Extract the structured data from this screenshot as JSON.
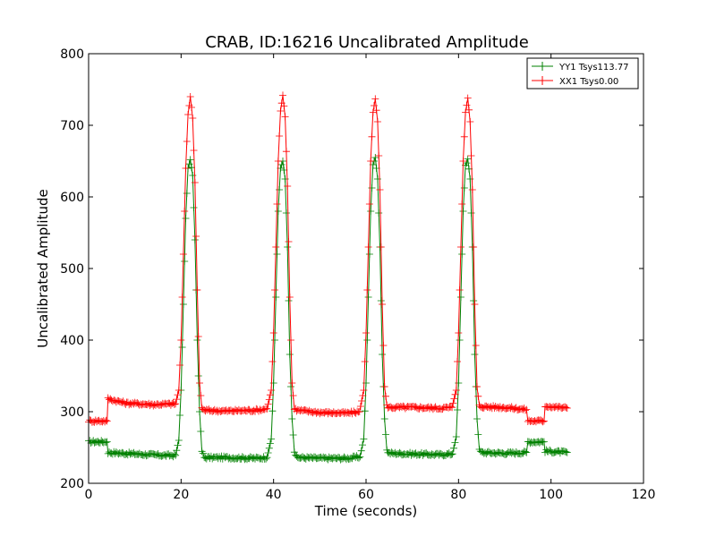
{
  "chart_data": {
    "type": "line",
    "title": "CRAB, ID:16216 Uncalibrated Amplitude",
    "xlabel": "Time (seconds)",
    "ylabel": "Uncalibrated Amplitude",
    "xlim": [
      0,
      120
    ],
    "ylim": [
      200,
      800
    ],
    "xticks": [
      "0",
      "20",
      "40",
      "60",
      "80",
      "100",
      "120"
    ],
    "yticks": [
      "200",
      "300",
      "400",
      "500",
      "600",
      "700",
      "800"
    ],
    "grid": false,
    "legend_position": "top-right",
    "series": [
      {
        "name": "YY1 Tsys113.77",
        "color": "#008000",
        "marker": "+",
        "keypoints": [
          [
            0,
            258
          ],
          [
            4,
            258
          ],
          [
            4.2,
            243
          ],
          [
            10,
            241
          ],
          [
            16,
            239
          ],
          [
            18.8,
            239
          ],
          [
            19.5,
            260
          ],
          [
            20,
            330
          ],
          [
            20.5,
            450
          ],
          [
            21,
            570
          ],
          [
            21.5,
            640
          ],
          [
            22,
            652
          ],
          [
            22.5,
            630
          ],
          [
            23,
            540
          ],
          [
            23.5,
            400
          ],
          [
            24,
            300
          ],
          [
            24.5,
            245
          ],
          [
            25,
            236
          ],
          [
            30,
            236
          ],
          [
            36,
            235
          ],
          [
            38.6,
            236
          ],
          [
            39.5,
            262
          ],
          [
            40,
            340
          ],
          [
            40.5,
            460
          ],
          [
            41,
            580
          ],
          [
            41.5,
            640
          ],
          [
            42,
            650
          ],
          [
            42.5,
            625
          ],
          [
            43,
            530
          ],
          [
            43.5,
            380
          ],
          [
            44,
            290
          ],
          [
            44.5,
            245
          ],
          [
            45,
            236
          ],
          [
            50,
            235
          ],
          [
            56,
            235
          ],
          [
            58.7,
            237
          ],
          [
            59.5,
            262
          ],
          [
            60,
            340
          ],
          [
            60.5,
            460
          ],
          [
            61,
            580
          ],
          [
            61.5,
            645
          ],
          [
            62,
            655
          ],
          [
            62.5,
            625
          ],
          [
            63,
            530
          ],
          [
            63.5,
            380
          ],
          [
            64,
            290
          ],
          [
            64.5,
            246
          ],
          [
            65,
            242
          ],
          [
            70,
            241
          ],
          [
            76,
            240
          ],
          [
            78.7,
            241
          ],
          [
            79.5,
            265
          ],
          [
            80,
            340
          ],
          [
            80.5,
            460
          ],
          [
            81,
            580
          ],
          [
            81.5,
            645
          ],
          [
            82,
            653
          ],
          [
            82.5,
            625
          ],
          [
            83,
            530
          ],
          [
            83.5,
            380
          ],
          [
            84,
            290
          ],
          [
            84.5,
            246
          ],
          [
            85,
            243
          ],
          [
            90,
            242
          ],
          [
            94.7,
            243
          ],
          [
            95,
            258
          ],
          [
            98.5,
            258
          ],
          [
            98.7,
            245
          ],
          [
            103.5,
            243
          ]
        ]
      },
      {
        "name": "XX1 Tsys0.00",
        "color": "#ff0000",
        "marker": "+",
        "keypoints": [
          [
            0,
            287
          ],
          [
            4,
            287
          ],
          [
            4.2,
            318
          ],
          [
            8,
            312
          ],
          [
            14,
            310
          ],
          [
            18.8,
            311
          ],
          [
            19.5,
            330
          ],
          [
            20,
            400
          ],
          [
            20.5,
            520
          ],
          [
            21,
            640
          ],
          [
            21.5,
            715
          ],
          [
            22,
            740
          ],
          [
            22.5,
            710
          ],
          [
            23,
            620
          ],
          [
            23.5,
            470
          ],
          [
            24,
            340
          ],
          [
            24.5,
            305
          ],
          [
            25,
            302
          ],
          [
            30,
            301
          ],
          [
            36,
            302
          ],
          [
            38.6,
            304
          ],
          [
            39.5,
            330
          ],
          [
            40,
            410
          ],
          [
            40.5,
            530
          ],
          [
            41,
            650
          ],
          [
            41.5,
            720
          ],
          [
            42,
            742
          ],
          [
            42.5,
            712
          ],
          [
            43,
            615
          ],
          [
            43.5,
            460
          ],
          [
            44,
            340
          ],
          [
            44.5,
            305
          ],
          [
            45,
            302
          ],
          [
            50,
            299
          ],
          [
            56,
            298
          ],
          [
            58.6,
            300
          ],
          [
            59.5,
            330
          ],
          [
            60,
            410
          ],
          [
            60.5,
            530
          ],
          [
            61,
            650
          ],
          [
            61.5,
            718
          ],
          [
            62,
            737
          ],
          [
            62.5,
            705
          ],
          [
            63,
            610
          ],
          [
            63.5,
            450
          ],
          [
            64,
            335
          ],
          [
            64.5,
            308
          ],
          [
            65,
            306
          ],
          [
            70,
            306
          ],
          [
            76,
            305
          ],
          [
            78.6,
            306
          ],
          [
            79.5,
            330
          ],
          [
            80,
            410
          ],
          [
            80.5,
            530
          ],
          [
            81,
            650
          ],
          [
            81.5,
            718
          ],
          [
            82,
            738
          ],
          [
            82.5,
            705
          ],
          [
            83,
            610
          ],
          [
            83.5,
            450
          ],
          [
            84,
            335
          ],
          [
            84.5,
            308
          ],
          [
            85,
            307
          ],
          [
            90,
            306
          ],
          [
            94.7,
            303
          ],
          [
            95,
            287
          ],
          [
            98.5,
            287
          ],
          [
            98.7,
            308
          ],
          [
            103.5,
            305
          ]
        ]
      }
    ]
  }
}
